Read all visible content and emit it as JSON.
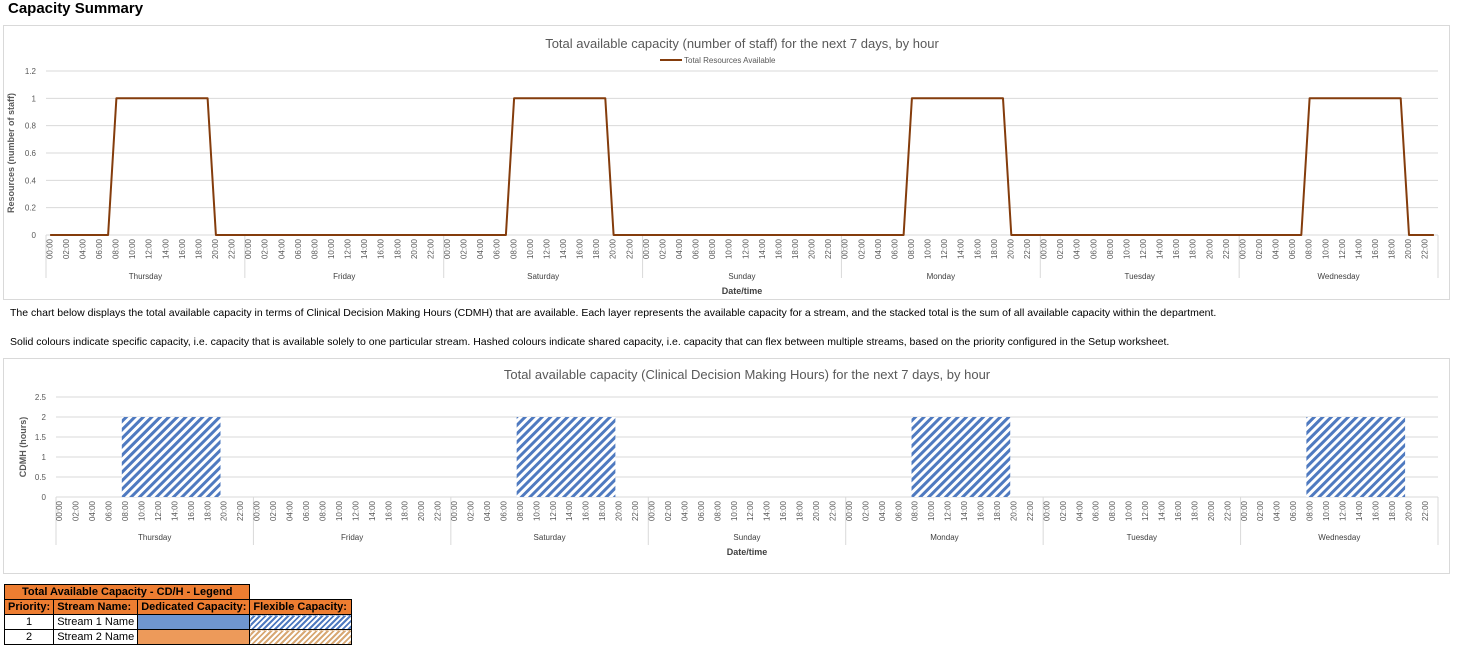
{
  "page": {
    "title": "Capacity Summary",
    "paragraph1": "The chart below displays the total available capacity in terms of Clinical Decision Making Hours (CDMH) that are available. Each layer represents the available capacity for a stream, and the stacked total is the sum of all available capacity within the department.",
    "paragraph2": "Solid colours indicate specific capacity, i.e. capacity that is available solely to one particular stream. Hashed colours indicate shared capacity, i.e. capacity that can flex between multiple streams, based on the priority configured in the Setup worksheet."
  },
  "legend_table": {
    "title": "Total Available Capacity - CD/H - Legend",
    "headers": [
      "Priority:",
      "Stream Name:",
      "Dedicated Capacity:",
      "Flexible Capacity:"
    ],
    "rows": [
      {
        "priority": "1",
        "name": "Stream 1 Name",
        "dedicated_color": "#6f96d0",
        "flexible_color": "#4f7ac0"
      },
      {
        "priority": "2",
        "name": "Stream 2 Name",
        "dedicated_color": "#ed9a5a",
        "flexible_color": "#d8a874"
      }
    ]
  },
  "chart_data": [
    {
      "type": "line",
      "title": "Total available capacity (number of staff) for the next 7 days, by hour",
      "xlabel": "Date/time",
      "ylabel": "Resources (number of staff)",
      "ylim": [
        0,
        1.2
      ],
      "yticks": [
        "0",
        "0.2",
        "0.4",
        "0.6",
        "0.8",
        "1",
        "1.2"
      ],
      "days": [
        "Thursday",
        "Friday",
        "Saturday",
        "Sunday",
        "Monday",
        "Tuesday",
        "Wednesday"
      ],
      "hour_labels": [
        "00:00",
        "02:00",
        "04:00",
        "06:00",
        "08:00",
        "10:00",
        "12:00",
        "14:00",
        "16:00",
        "18:00",
        "20:00",
        "22:00"
      ],
      "legend_position": "top",
      "grid": true,
      "series": [
        {
          "name": "Total Resources Available",
          "color": "#843c0c",
          "daily_pattern": {
            "active_from_hour": 8,
            "active_to_hour": 19,
            "active_days": [
              0,
              2,
              4,
              6
            ],
            "value": 1
          }
        }
      ]
    },
    {
      "type": "area",
      "stacked": true,
      "title": "Total available capacity (Clinical Decision Making Hours) for the next 7 days, by hour",
      "xlabel": "Date/time",
      "ylabel": "CDMH (hours)",
      "ylim": [
        0,
        2.5
      ],
      "yticks": [
        "0",
        "0.5",
        "1",
        "1.5",
        "2",
        "2.5"
      ],
      "days": [
        "Thursday",
        "Friday",
        "Saturday",
        "Sunday",
        "Monday",
        "Tuesday",
        "Wednesday"
      ],
      "hour_labels": [
        "00:00",
        "02:00",
        "04:00",
        "06:00",
        "08:00",
        "10:00",
        "12:00",
        "14:00",
        "16:00",
        "18:00",
        "20:00",
        "22:00"
      ],
      "grid": true,
      "series": [
        {
          "pattern": "hatched",
          "color": "#4f7ac0",
          "daily_pattern": {
            "active_from_hour": 8,
            "active_to_hour": 20,
            "active_days": [
              0,
              2,
              4,
              6
            ],
            "value": 2
          }
        }
      ]
    }
  ]
}
